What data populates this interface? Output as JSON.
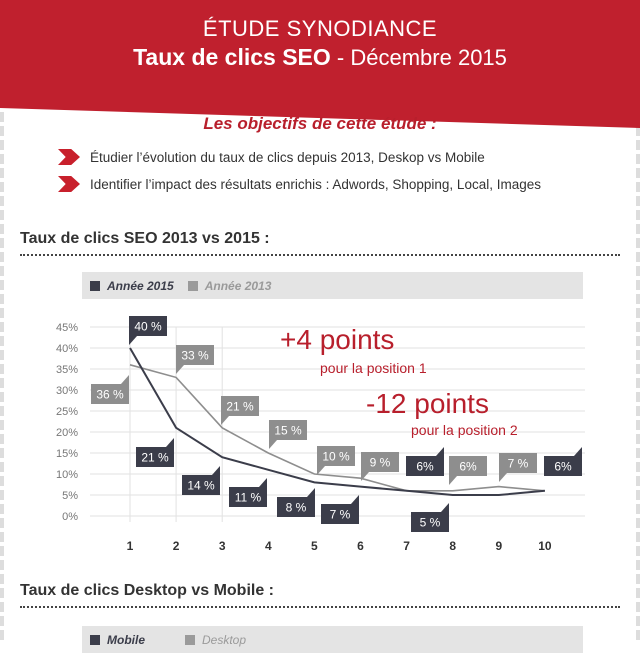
{
  "header": {
    "line1": "ÉTUDE SYNODIANCE",
    "title": "Taux de clics SEO",
    "separator": " - ",
    "date": "Décembre 2015",
    "color": "#c0202e"
  },
  "objectives": {
    "title": "Les objectifs de cette étude :",
    "items": [
      "Étudier l’évolution du taux de clics depuis 2013, Deskop vs Mobile",
      "Identifier l’impact des résultats enrichis : Adwords, Shopping, Local, Images"
    ]
  },
  "section1": {
    "title": "Taux de clics SEO 2013 vs 2015 :"
  },
  "section2": {
    "title": "Taux de clics Desktop vs Mobile :",
    "legend": [
      "Mobile",
      "Desktop"
    ]
  },
  "annotations": [
    {
      "big": "+4 points",
      "small": "pour la position 1"
    },
    {
      "big": "-12 points",
      "small": "pour la position 2"
    }
  ],
  "chart_data": {
    "type": "line",
    "categories": [
      "1",
      "2",
      "3",
      "4",
      "5",
      "6",
      "7",
      "8",
      "9",
      "10"
    ],
    "yticks": [
      "0%",
      "5%",
      "10%",
      "15%",
      "20%",
      "25%",
      "30%",
      "35%",
      "40%",
      "45%"
    ],
    "ylim": [
      0,
      45
    ],
    "grid": true,
    "legend_position": "top",
    "series": [
      {
        "name": "Année 2015",
        "color": "#3b3d4a",
        "values": [
          40,
          21,
          14,
          11,
          8,
          7,
          6,
          5,
          5,
          6
        ],
        "labels": [
          "40 %",
          "21 %",
          "14 %",
          "11 %",
          "8 %",
          "7 %",
          "6%",
          "5 %",
          null,
          "6%"
        ]
      },
      {
        "name": "Année 2013",
        "color": "#8e8e8e",
        "values": [
          36,
          33,
          21,
          15,
          10,
          9,
          6,
          6,
          7,
          6
        ],
        "labels": [
          "36 %",
          "33 %",
          "21 %",
          "15 %",
          "10 %",
          "9 %",
          "6%",
          null,
          "7 %",
          null
        ]
      }
    ]
  }
}
